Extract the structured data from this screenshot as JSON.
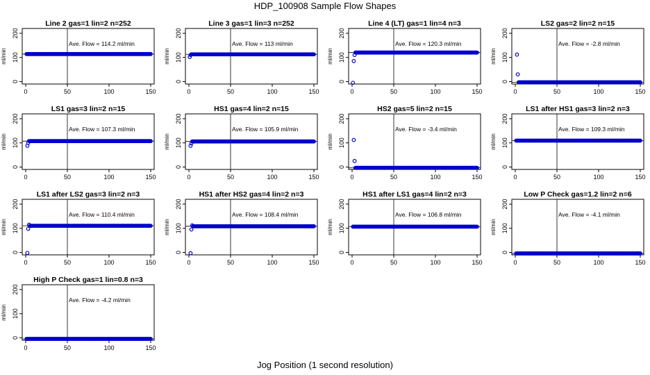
{
  "title": "HDP_100908  Sample Flow Shapes",
  "xlabel": "Jog Position (1 second resolution)",
  "colors": {
    "points": "#0000cc",
    "axis": "#000000"
  },
  "chart_data": [
    {
      "type": "scatter",
      "title": "Line 2 gas=1 lin=2 n=252",
      "ylabel": "ml/min",
      "annotation": "Ave. Flow =  114.2  ml/min",
      "ave": 114.2,
      "vline": 50,
      "xlim": [
        0,
        150
      ],
      "ylim": [
        -10,
        220
      ],
      "xticks": [
        0,
        50,
        100,
        150
      ],
      "yticks": [
        0,
        100,
        200
      ],
      "level": 114.2,
      "start": []
    },
    {
      "type": "scatter",
      "title": "Line 3 gas=1 lin=3 n=252",
      "ylabel": "ml/min",
      "annotation": "Ave. Flow =  113  ml/min",
      "ave": 113,
      "vline": 50,
      "xlim": [
        0,
        150
      ],
      "ylim": [
        -10,
        220
      ],
      "xticks": [
        0,
        50,
        100,
        150
      ],
      "yticks": [
        0,
        100,
        200
      ],
      "level": 113,
      "start": [
        [
          1,
          102
        ],
        [
          2,
          110
        ]
      ]
    },
    {
      "type": "scatter",
      "title": "Line 4 (LT) gas=1 lin=4 n=3",
      "ylabel": "ml/min",
      "annotation": "Ave. Flow =  120.3  ml/min",
      "ave": 120.3,
      "vline": 50,
      "xlim": [
        0,
        150
      ],
      "ylim": [
        -10,
        220
      ],
      "xticks": [
        0,
        50,
        100,
        150
      ],
      "yticks": [
        0,
        100,
        200
      ],
      "level": 120.3,
      "start": [
        [
          1,
          -5
        ],
        [
          2,
          85
        ],
        [
          3,
          110
        ]
      ]
    },
    {
      "type": "scatter",
      "title": "LS2 gas=2 lin=2 n=15",
      "ylabel": "ml/min",
      "annotation": "Ave. Flow =  -2.8  ml/min",
      "ave": -2.8,
      "vline": 50,
      "xlim": [
        0,
        150
      ],
      "ylim": [
        -10,
        220
      ],
      "xticks": [
        0,
        50,
        100,
        150
      ],
      "yticks": [
        0,
        100,
        200
      ],
      "level": -2.8,
      "start": [
        [
          2,
          112
        ],
        [
          3,
          30
        ]
      ]
    },
    {
      "type": "scatter",
      "title": "LS1 gas=3 lin=2 n=15",
      "ylabel": "ml/min",
      "annotation": "Ave. Flow =  107.3  ml/min",
      "ave": 107.3,
      "vline": 50,
      "xlim": [
        0,
        150
      ],
      "ylim": [
        -10,
        220
      ],
      "xticks": [
        0,
        50,
        100,
        150
      ],
      "yticks": [
        0,
        100,
        200
      ],
      "level": 107.3,
      "start": [
        [
          2,
          88
        ],
        [
          3,
          100
        ]
      ]
    },
    {
      "type": "scatter",
      "title": "HS1 gas=4 lin=2 n=15",
      "ylabel": "ml/min",
      "annotation": "Ave. Flow =  105.9  ml/min",
      "ave": 105.9,
      "vline": 50,
      "xlim": [
        0,
        150
      ],
      "ylim": [
        -10,
        220
      ],
      "xticks": [
        0,
        50,
        100,
        150
      ],
      "yticks": [
        0,
        100,
        200
      ],
      "level": 105.9,
      "start": [
        [
          2,
          88
        ],
        [
          3,
          98
        ]
      ]
    },
    {
      "type": "scatter",
      "title": "HS2 gas=5 lin=2 n=15",
      "ylabel": "ml/min",
      "annotation": "Ave. Flow =  -3.4  ml/min",
      "ave": -3.4,
      "vline": 50,
      "xlim": [
        0,
        150
      ],
      "ylim": [
        -10,
        220
      ],
      "xticks": [
        0,
        50,
        100,
        150
      ],
      "yticks": [
        0,
        100,
        200
      ],
      "level": -3.4,
      "start": [
        [
          2,
          112
        ],
        [
          3,
          25
        ]
      ]
    },
    {
      "type": "scatter",
      "title": "LS1 after HS1 gas=3 lin=2 n=3",
      "ylabel": "ml/min",
      "annotation": "Ave. Flow =  109.3  ml/min",
      "ave": 109.3,
      "vline": 50,
      "xlim": [
        0,
        150
      ],
      "ylim": [
        -10,
        220
      ],
      "xticks": [
        0,
        50,
        100,
        150
      ],
      "yticks": [
        0,
        100,
        200
      ],
      "level": 109.3,
      "start": []
    },
    {
      "type": "scatter",
      "title": "LS1 after LS2 gas=3 lin=2 n=3",
      "ylabel": "ml/min",
      "annotation": "Ave. Flow =  110.4  ml/min",
      "ave": 110.4,
      "vline": 50,
      "xlim": [
        0,
        150
      ],
      "ylim": [
        -10,
        220
      ],
      "xticks": [
        0,
        50,
        100,
        150
      ],
      "yticks": [
        0,
        100,
        200
      ],
      "level": 110.4,
      "start": [
        [
          2,
          -2
        ],
        [
          3,
          98
        ],
        [
          4,
          115
        ]
      ]
    },
    {
      "type": "scatter",
      "title": "HS1 after HS2 gas=4 lin=2 n=3",
      "ylabel": "ml/min",
      "annotation": "Ave. Flow =  108.4  ml/min",
      "ave": 108.4,
      "vline": 50,
      "xlim": [
        0,
        150
      ],
      "ylim": [
        -10,
        220
      ],
      "xticks": [
        0,
        50,
        100,
        150
      ],
      "yticks": [
        0,
        100,
        200
      ],
      "level": 108.4,
      "start": [
        [
          2,
          -3
        ],
        [
          3,
          95
        ],
        [
          4,
          112
        ]
      ]
    },
    {
      "type": "scatter",
      "title": "HS1 after LS1 gas=4 lin=2 n=3",
      "ylabel": "ml/min",
      "annotation": "Ave. Flow =  106.8  ml/min",
      "ave": 106.8,
      "vline": 50,
      "xlim": [
        0,
        150
      ],
      "ylim": [
        -10,
        220
      ],
      "xticks": [
        0,
        50,
        100,
        150
      ],
      "yticks": [
        0,
        100,
        200
      ],
      "level": 106.8,
      "start": []
    },
    {
      "type": "scatter",
      "title": "Low P Check gas=1.2 lin=2 n=6",
      "ylabel": "ml/min",
      "annotation": "Ave. Flow =  -4.1  ml/min",
      "ave": -4.1,
      "vline": 50,
      "xlim": [
        0,
        150
      ],
      "ylim": [
        -10,
        220
      ],
      "xticks": [
        0,
        50,
        100,
        150
      ],
      "yticks": [
        0,
        100,
        200
      ],
      "level": -4.1,
      "start": []
    },
    {
      "type": "scatter",
      "title": "High P Check gas=1 lin=0.8 n=3",
      "ylabel": "ml/min",
      "annotation": "Ave. Flow =  -4.2  ml/min",
      "ave": -4.2,
      "vline": 50,
      "xlim": [
        0,
        150
      ],
      "ylim": [
        -10,
        220
      ],
      "xticks": [
        0,
        50,
        100,
        150
      ],
      "yticks": [
        0,
        100,
        200
      ],
      "level": -4.2,
      "start": []
    }
  ]
}
